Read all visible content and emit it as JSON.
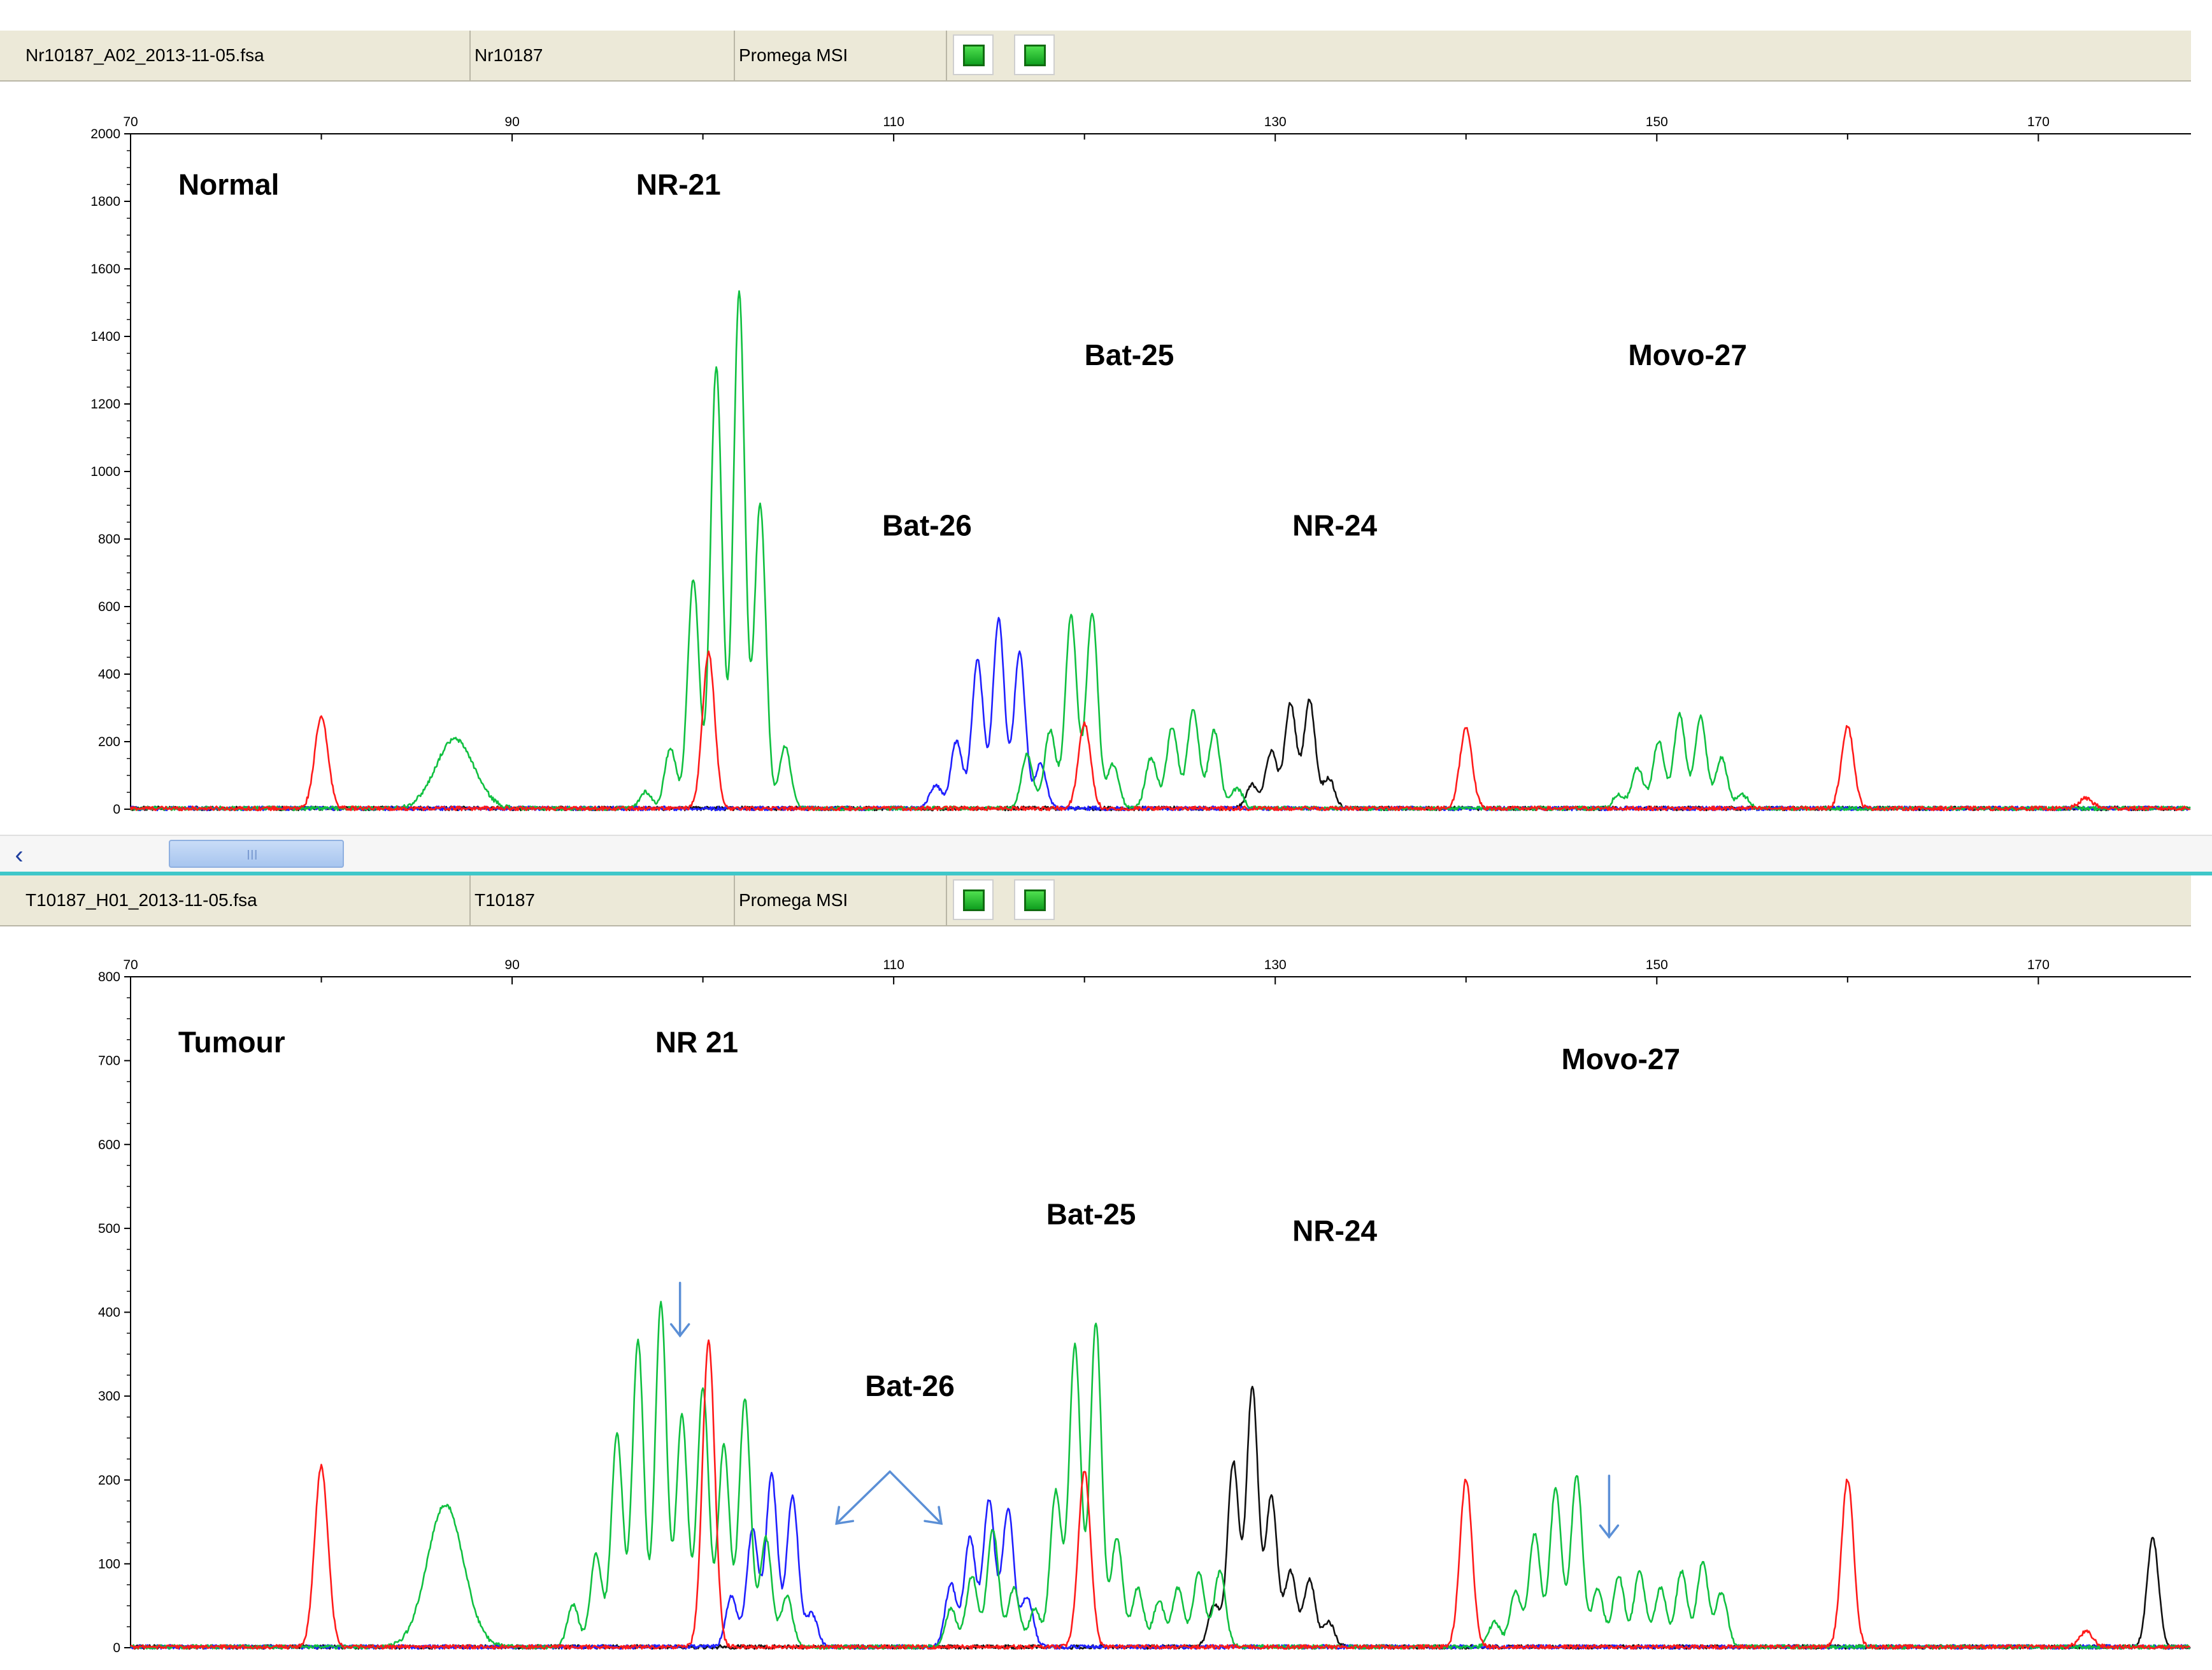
{
  "panels": [
    {
      "filename": "Nr10187_A02_2013-11-05.fsa",
      "sample": "Nr10187",
      "panel_name": "Promega MSI"
    },
    {
      "filename": "T10187_H01_2013-11-05.fsa",
      "sample": "T10187",
      "panel_name": "Promega MSI"
    }
  ],
  "scrollbar": {
    "grip": "III"
  },
  "chart_data": [
    {
      "type": "line",
      "x_ticks": [
        70,
        90,
        110,
        130,
        150,
        170
      ],
      "xlim": [
        70,
        178
      ],
      "ylim": [
        0,
        2000
      ],
      "y_ticks": [
        0,
        200,
        400,
        600,
        800,
        1000,
        1200,
        1400,
        1600,
        1800,
        2000
      ],
      "annotations": [
        {
          "text": "Normal",
          "x": 72.5,
          "y": 1820
        },
        {
          "text": "NR-21",
          "x": 96.5,
          "y": 1820
        },
        {
          "text": "Bat-25",
          "x": 120.0,
          "y": 1315
        },
        {
          "text": "Movo-27",
          "x": 148.5,
          "y": 1315
        },
        {
          "text": "Bat-26",
          "x": 109.4,
          "y": 810
        },
        {
          "text": "NR-24",
          "x": 130.9,
          "y": 810
        }
      ],
      "series": [
        {
          "color": "#ff1a1a",
          "peaks": [
            [
              80,
              270,
              0.35
            ],
            [
              100.3,
              460,
              0.32
            ],
            [
              120,
              250,
              0.32
            ],
            [
              140,
              240,
              0.32
            ],
            [
              160,
              245,
              0.32
            ],
            [
              172.5,
              30,
              0.35
            ]
          ]
        },
        {
          "color": "#10c040",
          "peaks": [
            [
              87,
              205,
              1.0
            ],
            [
              97,
              50,
              0.3
            ],
            [
              98.3,
              180,
              0.3
            ],
            [
              99.5,
              680,
              0.3
            ],
            [
              100.7,
              1310,
              0.3
            ],
            [
              101.9,
              1525,
              0.3
            ],
            [
              103.0,
              900,
              0.3
            ],
            [
              104.3,
              185,
              0.3
            ],
            [
              117,
              160,
              0.3
            ],
            [
              118.2,
              230,
              0.3
            ],
            [
              119.3,
              570,
              0.3
            ],
            [
              120.4,
              580,
              0.3
            ],
            [
              121.5,
              130,
              0.3
            ],
            [
              123.5,
              150,
              0.3
            ],
            [
              124.6,
              240,
              0.3
            ],
            [
              125.7,
              290,
              0.3
            ],
            [
              126.8,
              230,
              0.3
            ],
            [
              128.0,
              60,
              0.3
            ],
            [
              148.0,
              40,
              0.3
            ],
            [
              149.0,
              120,
              0.3
            ],
            [
              150.1,
              200,
              0.3
            ],
            [
              151.2,
              280,
              0.3
            ],
            [
              152.3,
              270,
              0.3
            ],
            [
              153.4,
              150,
              0.3
            ],
            [
              154.5,
              40,
              0.3
            ]
          ]
        },
        {
          "color": "#2020ff",
          "peaks": [
            [
              112.2,
              70,
              0.3
            ],
            [
              113.3,
              200,
              0.3
            ],
            [
              114.4,
              440,
              0.3
            ],
            [
              115.5,
              560,
              0.3
            ],
            [
              116.6,
              460,
              0.3
            ],
            [
              117.7,
              130,
              0.3
            ]
          ]
        },
        {
          "color": "#111111",
          "peaks": [
            [
              128.8,
              70,
              0.3
            ],
            [
              129.8,
              170,
              0.3
            ],
            [
              130.8,
              310,
              0.3
            ],
            [
              131.8,
              320,
              0.3
            ],
            [
              132.8,
              90,
              0.3
            ]
          ]
        }
      ]
    },
    {
      "type": "line",
      "x_ticks": [
        70,
        90,
        110,
        130,
        150,
        170
      ],
      "xlim": [
        70,
        178
      ],
      "ylim": [
        0,
        800
      ],
      "y_ticks": [
        0,
        100,
        200,
        300,
        400,
        500,
        600,
        700,
        800
      ],
      "annotations": [
        {
          "text": "Tumour",
          "x": 72.5,
          "y": 710
        },
        {
          "text": "NR 21",
          "x": 97.5,
          "y": 710
        },
        {
          "text": "Movo-27",
          "x": 145.0,
          "y": 690
        },
        {
          "text": "Bat-25",
          "x": 118.0,
          "y": 505
        },
        {
          "text": "NR-24",
          "x": 130.9,
          "y": 485
        },
        {
          "text": "Bat-26",
          "x": 108.5,
          "y": 300
        }
      ],
      "arrows": [
        {
          "type": "down",
          "x": 98.8,
          "from": 435,
          "to": 372
        },
        {
          "type": "down",
          "x": 147.5,
          "from": 205,
          "to": 132
        },
        {
          "type": "chevron",
          "x_left": 107.0,
          "x_apex": 109.8,
          "x_right": 112.5,
          "y_apex": 210,
          "y_base": 148
        }
      ],
      "series": [
        {
          "color": "#ff1a1a",
          "peaks": [
            [
              80,
              215,
              0.35
            ],
            [
              100.3,
              365,
              0.32
            ],
            [
              120,
              210,
              0.32
            ],
            [
              140,
              200,
              0.32
            ],
            [
              160,
              200,
              0.32
            ],
            [
              172.5,
              18,
              0.35
            ]
          ]
        },
        {
          "color": "#10c040",
          "peaks": [
            [
              86.5,
              170,
              0.95
            ],
            [
              93.2,
              50,
              0.3
            ],
            [
              94.4,
              110,
              0.3
            ],
            [
              95.5,
              255,
              0.3
            ],
            [
              96.6,
              365,
              0.3
            ],
            [
              97.8,
              410,
              0.3
            ],
            [
              98.9,
              275,
              0.3
            ],
            [
              100.0,
              310,
              0.3
            ],
            [
              101.1,
              240,
              0.3
            ],
            [
              102.2,
              295,
              0.3
            ],
            [
              103.3,
              130,
              0.3
            ],
            [
              104.4,
              60,
              0.3
            ],
            [
              113.0,
              45,
              0.3
            ],
            [
              114.1,
              85,
              0.3
            ],
            [
              115.2,
              140,
              0.3
            ],
            [
              116.3,
              70,
              0.3
            ],
            [
              117.4,
              45,
              0.3
            ],
            [
              118.5,
              185,
              0.3
            ],
            [
              119.5,
              360,
              0.3
            ],
            [
              120.6,
              385,
              0.3
            ],
            [
              121.7,
              130,
              0.3
            ],
            [
              122.8,
              70,
              0.3
            ],
            [
              123.9,
              55,
              0.3
            ],
            [
              124.9,
              70,
              0.3
            ],
            [
              126.0,
              90,
              0.3
            ],
            [
              127.1,
              90,
              0.3
            ],
            [
              141.5,
              30,
              0.3
            ],
            [
              142.6,
              65,
              0.3
            ],
            [
              143.6,
              135,
              0.3
            ],
            [
              144.7,
              190,
              0.3
            ],
            [
              145.8,
              205,
              0.3
            ],
            [
              146.9,
              70,
              0.3
            ],
            [
              148.0,
              85,
              0.3
            ],
            [
              149.1,
              90,
              0.3
            ],
            [
              150.2,
              70,
              0.3
            ],
            [
              151.3,
              90,
              0.3
            ],
            [
              152.4,
              100,
              0.3
            ],
            [
              153.4,
              65,
              0.3
            ]
          ]
        },
        {
          "color": "#2020ff",
          "peaks": [
            [
              101.5,
              60,
              0.3
            ],
            [
              102.6,
              140,
              0.3
            ],
            [
              103.6,
              205,
              0.3
            ],
            [
              104.7,
              180,
              0.3
            ],
            [
              105.7,
              40,
              0.3
            ],
            [
              113.0,
              75,
              0.3
            ],
            [
              114.0,
              130,
              0.3
            ],
            [
              115.0,
              175,
              0.3
            ],
            [
              116.0,
              165,
              0.3
            ],
            [
              117.0,
              60,
              0.3
            ]
          ]
        },
        {
          "color": "#111111",
          "peaks": [
            [
              126.8,
              50,
              0.3
            ],
            [
              127.8,
              220,
              0.3
            ],
            [
              128.8,
              310,
              0.3
            ],
            [
              129.8,
              180,
              0.3
            ],
            [
              130.8,
              90,
              0.3
            ],
            [
              131.8,
              80,
              0.3
            ],
            [
              132.8,
              30,
              0.3
            ],
            [
              176.0,
              130,
              0.3
            ]
          ]
        }
      ]
    }
  ]
}
